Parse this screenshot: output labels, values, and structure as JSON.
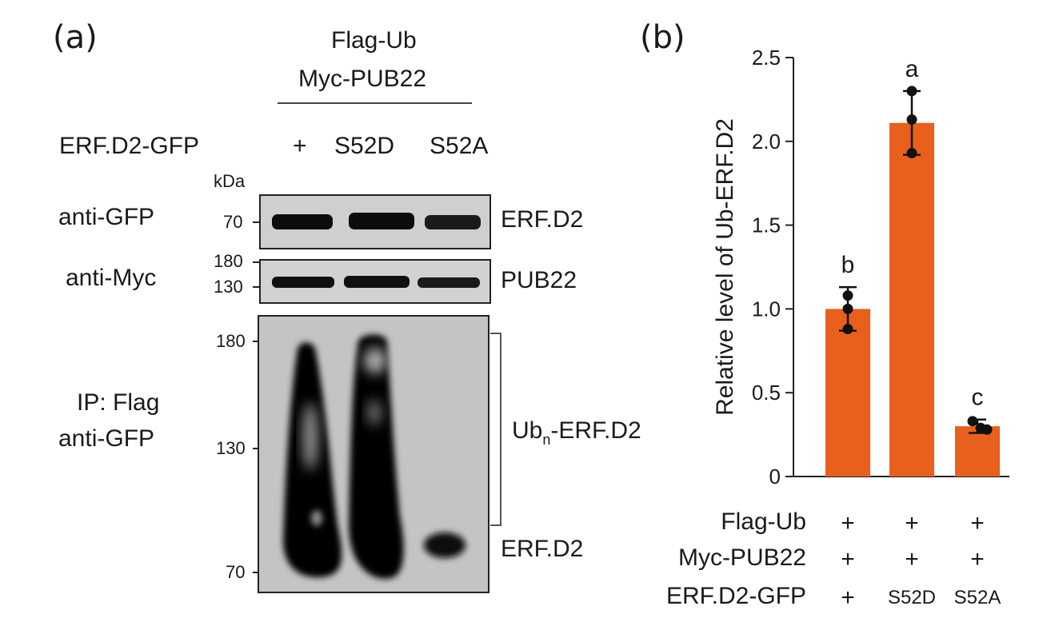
{
  "panel_a": {
    "letter": "(a)",
    "header_line1": "Flag-Ub",
    "header_line2": "Myc-PUB22",
    "row_label": "ERF.D2-GFP",
    "lanes": [
      "+",
      "S52D",
      "S52A"
    ],
    "kda": "kDa",
    "blots": [
      {
        "antibody": "anti-GFP",
        "markers": [
          "70"
        ],
        "band_label": "ERF.D2"
      },
      {
        "antibody": "anti-Myc",
        "markers": [
          "180",
          "130"
        ],
        "band_label": "PUB22"
      },
      {
        "antibody_line1": "IP: Flag",
        "antibody_line2": "anti-GFP",
        "markers": [
          "180",
          "130",
          "70"
        ],
        "ub_label_main": "Ub",
        "ub_label_sub": "n",
        "ub_label_rest": "-ERF.D2",
        "band_label": "ERF.D2"
      }
    ]
  },
  "panel_b": {
    "letter": "(b)"
  },
  "chart_data": {
    "type": "bar",
    "categories": [
      "+",
      "S52D",
      "S52A"
    ],
    "values": [
      1.0,
      2.11,
      0.3
    ],
    "errors": [
      0.13,
      0.19,
      0.04
    ],
    "points": [
      [
        1.08,
        1.0,
        0.88
      ],
      [
        2.3,
        2.13,
        1.93
      ],
      [
        0.33,
        0.29,
        0.28
      ]
    ],
    "significance": [
      "b",
      "a",
      "c"
    ],
    "ylabel": "Relative level of Ub-ERF.D2",
    "ylim": [
      0,
      2.5
    ],
    "yticks": [
      "0",
      "0.5",
      "1.0",
      "1.5",
      "2.0",
      "2.5"
    ],
    "bar_color": "#e8601c",
    "grid": false,
    "conditions": [
      {
        "label": "Flag-Ub",
        "values": [
          "+",
          "+",
          "+"
        ]
      },
      {
        "label": "Myc-PUB22",
        "values": [
          "+",
          "+",
          "+"
        ]
      },
      {
        "label": "ERF.D2-GFP",
        "values": [
          "+",
          "S52D",
          "S52A"
        ]
      }
    ]
  }
}
